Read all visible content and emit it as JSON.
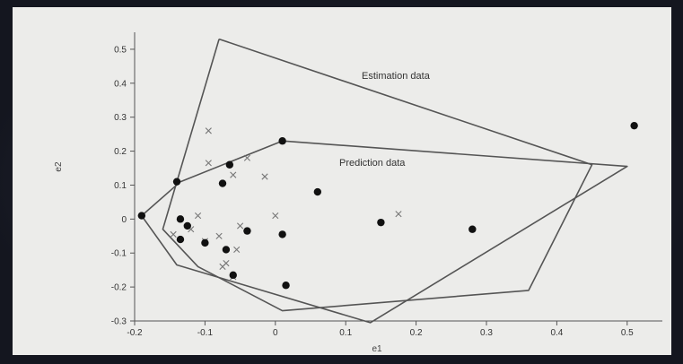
{
  "chart_data": {
    "type": "scatter",
    "title": "",
    "xlabel": "e1",
    "ylabel": "e2",
    "xlim": [
      -0.2,
      0.55
    ],
    "ylim": [
      -0.3,
      0.55
    ],
    "x_ticks": [
      -0.2,
      -0.1,
      0,
      0.1,
      0.2,
      0.3,
      0.4,
      0.5
    ],
    "x_tick_labels": [
      "-0.2",
      "-0.1",
      "0",
      "0.1",
      "0.2",
      "0.3",
      "0.4",
      "0.5"
    ],
    "y_ticks": [
      -0.3,
      -0.2,
      -0.1,
      0,
      0.1,
      0.2,
      0.3,
      0.4,
      0.5
    ],
    "y_tick_labels": [
      "-0.3",
      "-0.2",
      "-0.1",
      "0",
      "0.1",
      "0.2",
      "0.3",
      "0.4",
      "0.5"
    ],
    "grid": false,
    "legend": "none",
    "annotations": [
      {
        "text": "Estimation data",
        "x": 0.14,
        "y": 0.41
      },
      {
        "text": "Prediction data",
        "x": 0.1,
        "y": 0.16
      }
    ],
    "polygons": [
      {
        "role": "estimation-hull",
        "points": [
          [
            -0.08,
            0.53
          ],
          [
            0.45,
            0.16
          ],
          [
            0.36,
            -0.21
          ],
          [
            0.01,
            -0.27
          ],
          [
            -0.11,
            -0.14
          ],
          [
            -0.16,
            -0.03
          ],
          [
            -0.08,
            0.53
          ]
        ]
      },
      {
        "role": "prediction-hull",
        "points": [
          [
            0.01,
            0.23
          ],
          [
            0.5,
            0.155
          ],
          [
            0.135,
            -0.305
          ],
          [
            -0.14,
            -0.135
          ],
          [
            -0.19,
            0.01
          ],
          [
            -0.135,
            0.11
          ],
          [
            0.01,
            0.23
          ]
        ]
      }
    ],
    "series": [
      {
        "marker": "cross",
        "x": [
          -0.095,
          -0.095,
          -0.04,
          -0.015,
          -0.06,
          -0.11,
          -0.05,
          -0.12,
          -0.145,
          -0.1,
          -0.08,
          -0.055,
          -0.07,
          -0.075,
          -0.06,
          0,
          0.175
        ],
        "y": [
          0.26,
          0.165,
          0.18,
          0.125,
          0.13,
          0.01,
          -0.02,
          -0.03,
          -0.045,
          -0.065,
          -0.05,
          -0.09,
          -0.13,
          -0.14,
          -0.17,
          0.01,
          0.015
        ]
      },
      {
        "marker": "dot",
        "x": [
          -0.19,
          -0.14,
          -0.135,
          -0.125,
          -0.135,
          -0.1,
          -0.075,
          -0.065,
          -0.07,
          -0.04,
          -0.06,
          0.01,
          0.01,
          0.015,
          0.06,
          0.15,
          0.28,
          0.51
        ],
        "y": [
          0.01,
          0.11,
          0,
          -0.02,
          -0.06,
          -0.07,
          0.105,
          0.16,
          -0.09,
          -0.035,
          -0.165,
          0.23,
          -0.045,
          -0.195,
          0.08,
          -0.01,
          -0.03,
          0.275
        ]
      }
    ]
  }
}
